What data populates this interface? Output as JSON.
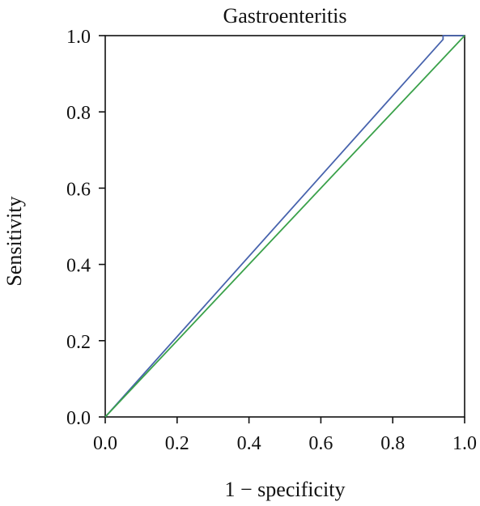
{
  "chart_data": {
    "type": "line",
    "title": "Gastroenteritis",
    "xlabel": "1 − specificity",
    "ylabel": "Sensitivity",
    "xlim": [
      0.0,
      1.0
    ],
    "ylim": [
      0.0,
      1.0
    ],
    "x_ticks": [
      "0.0",
      "0.2",
      "0.4",
      "0.6",
      "0.8",
      "1.0"
    ],
    "y_ticks": [
      "0.0",
      "0.2",
      "0.4",
      "0.6",
      "0.8",
      "1.0"
    ],
    "grid": false,
    "series": [
      {
        "color": "#4763ad",
        "x": [
          0.0,
          0.94,
          0.94,
          1.0
        ],
        "y": [
          0.0,
          0.99,
          1.0,
          1.0
        ]
      },
      {
        "color": "#3aa14a",
        "x": [
          0.0,
          1.0
        ],
        "y": [
          0.0,
          1.0
        ]
      }
    ]
  }
}
